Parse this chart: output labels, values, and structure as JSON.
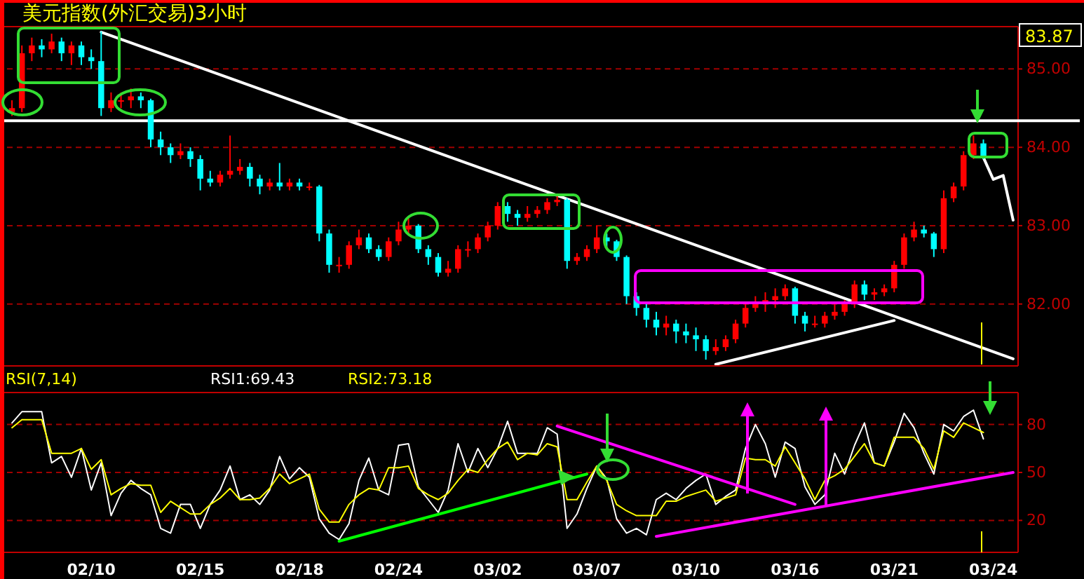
{
  "chart_data": [
    {
      "type": "candlestick",
      "title": "美元指数(外汇交易)3小时",
      "categories": [
        null,
        null,
        null,
        null,
        null,
        null,
        null,
        null,
        null,
        null,
        null,
        null,
        null,
        null,
        null,
        null,
        null,
        null,
        null,
        null,
        null,
        null,
        null,
        null,
        null,
        null,
        null,
        null,
        null,
        null,
        null,
        null,
        null,
        null,
        null,
        null,
        null,
        null,
        null,
        null,
        null,
        null,
        null,
        null,
        null,
        null,
        null,
        null,
        null,
        null,
        null,
        null,
        null,
        null,
        null,
        null,
        null,
        null,
        null,
        null,
        null,
        null,
        null,
        null,
        null,
        null,
        null,
        null,
        null,
        null,
        null,
        null,
        null,
        null,
        null,
        null,
        null,
        null,
        null,
        null,
        null,
        null,
        null,
        null,
        null,
        null,
        null,
        null,
        null,
        null,
        null,
        null,
        null,
        null,
        null,
        null,
        null,
        null,
        null,
        null,
        null,
        null
      ],
      "ohlc": [
        [
          84.45,
          84.6,
          84.4,
          84.5
        ],
        [
          84.5,
          85.3,
          84.45,
          85.2
        ],
        [
          85.2,
          85.4,
          85.1,
          85.3
        ],
        [
          85.3,
          85.38,
          85.15,
          85.25
        ],
        [
          85.25,
          85.45,
          85.2,
          85.35
        ],
        [
          85.35,
          85.4,
          85.1,
          85.2
        ],
        [
          85.2,
          85.35,
          85.05,
          85.3
        ],
        [
          85.3,
          85.35,
          85.05,
          85.15
        ],
        [
          85.15,
          85.25,
          85.0,
          85.1
        ],
        [
          85.1,
          85.48,
          84.4,
          84.5
        ],
        [
          84.5,
          84.7,
          84.45,
          84.6
        ],
        [
          84.6,
          84.7,
          84.5,
          84.6
        ],
        [
          84.6,
          84.75,
          84.5,
          84.65
        ],
        [
          84.65,
          84.7,
          84.5,
          84.6
        ],
        [
          84.6,
          84.62,
          84.0,
          84.1
        ],
        [
          84.1,
          84.2,
          83.9,
          84.0
        ],
        [
          84.0,
          84.05,
          83.8,
          83.9
        ],
        [
          83.9,
          84.05,
          83.85,
          83.95
        ],
        [
          83.95,
          84.0,
          83.75,
          83.85
        ],
        [
          83.85,
          83.9,
          83.45,
          83.6
        ],
        [
          83.6,
          83.7,
          83.5,
          83.55
        ],
        [
          83.55,
          83.7,
          83.5,
          83.65
        ],
        [
          83.65,
          84.15,
          83.6,
          83.7
        ],
        [
          83.7,
          83.85,
          83.65,
          83.75
        ],
        [
          83.75,
          83.8,
          83.5,
          83.6
        ],
        [
          83.6,
          83.65,
          83.4,
          83.5
        ],
        [
          83.5,
          83.6,
          83.45,
          83.55
        ],
        [
          83.55,
          83.8,
          83.45,
          83.5
        ],
        [
          83.5,
          83.6,
          83.45,
          83.55
        ],
        [
          83.55,
          83.6,
          83.45,
          83.5
        ],
        [
          83.5,
          83.55,
          83.45,
          83.5
        ],
        [
          83.5,
          83.52,
          82.8,
          82.9
        ],
        [
          82.9,
          82.95,
          82.4,
          82.5
        ],
        [
          82.5,
          82.6,
          82.4,
          82.5
        ],
        [
          82.5,
          82.8,
          82.45,
          82.75
        ],
        [
          82.75,
          82.95,
          82.7,
          82.85
        ],
        [
          82.85,
          82.9,
          82.65,
          82.7
        ],
        [
          82.7,
          82.75,
          82.55,
          82.6
        ],
        [
          82.6,
          82.85,
          82.55,
          82.8
        ],
        [
          82.8,
          83.05,
          82.75,
          82.95
        ],
        [
          82.95,
          83.1,
          82.9,
          83.0
        ],
        [
          83.0,
          83.02,
          82.65,
          82.7
        ],
        [
          82.7,
          82.75,
          82.5,
          82.6
        ],
        [
          82.6,
          82.65,
          82.35,
          82.4
        ],
        [
          82.4,
          82.55,
          82.35,
          82.45
        ],
        [
          82.45,
          82.75,
          82.4,
          82.7
        ],
        [
          82.7,
          82.8,
          82.6,
          82.7
        ],
        [
          82.7,
          82.9,
          82.65,
          82.85
        ],
        [
          82.85,
          83.05,
          82.8,
          83.0
        ],
        [
          83.0,
          83.3,
          82.95,
          83.25
        ],
        [
          83.25,
          83.3,
          83.05,
          83.15
        ],
        [
          83.15,
          83.2,
          83.0,
          83.1
        ],
        [
          83.1,
          83.25,
          83.05,
          83.15
        ],
        [
          83.15,
          83.25,
          83.1,
          83.2
        ],
        [
          83.2,
          83.35,
          83.15,
          83.3
        ],
        [
          83.3,
          83.38,
          83.25,
          83.33
        ],
        [
          83.33,
          83.35,
          82.45,
          82.55
        ],
        [
          82.55,
          82.65,
          82.5,
          82.6
        ],
        [
          82.6,
          82.75,
          82.55,
          82.7
        ],
        [
          82.7,
          83.0,
          82.65,
          82.85
        ],
        [
          82.85,
          82.9,
          82.7,
          82.8
        ],
        [
          82.8,
          82.82,
          82.55,
          82.6
        ],
        [
          82.6,
          82.62,
          82.0,
          82.1
        ],
        [
          82.1,
          82.15,
          81.85,
          81.95
        ],
        [
          81.95,
          82.0,
          81.7,
          81.8
        ],
        [
          81.8,
          81.9,
          81.6,
          81.7
        ],
        [
          81.7,
          81.85,
          81.6,
          81.75
        ],
        [
          81.75,
          81.8,
          81.5,
          81.65
        ],
        [
          81.65,
          81.75,
          81.5,
          81.6
        ],
        [
          81.6,
          81.7,
          81.4,
          81.55
        ],
        [
          81.55,
          81.6,
          81.29,
          81.4
        ],
        [
          81.4,
          81.55,
          81.35,
          81.45
        ],
        [
          81.45,
          81.6,
          81.4,
          81.55
        ],
        [
          81.55,
          81.8,
          81.5,
          81.75
        ],
        [
          81.75,
          82.0,
          81.7,
          81.95
        ],
        [
          81.95,
          82.1,
          81.9,
          82.0
        ],
        [
          82.0,
          82.15,
          81.9,
          82.05
        ],
        [
          82.05,
          82.2,
          81.95,
          82.1
        ],
        [
          82.1,
          82.25,
          82.05,
          82.2
        ],
        [
          82.2,
          82.22,
          81.75,
          81.85
        ],
        [
          81.85,
          81.9,
          81.65,
          81.75
        ],
        [
          81.75,
          81.85,
          81.7,
          81.75
        ],
        [
          81.75,
          81.9,
          81.7,
          81.85
        ],
        [
          81.85,
          82.0,
          81.8,
          81.9
        ],
        [
          81.9,
          82.05,
          81.85,
          82.0
        ],
        [
          82.0,
          82.3,
          81.95,
          82.25
        ],
        [
          82.25,
          82.3,
          82.05,
          82.12
        ],
        [
          82.12,
          82.2,
          82.05,
          82.15
        ],
        [
          82.15,
          82.25,
          82.1,
          82.2
        ],
        [
          82.2,
          82.55,
          82.15,
          82.5
        ],
        [
          82.5,
          82.9,
          82.45,
          82.85
        ],
        [
          82.85,
          83.05,
          82.8,
          82.95
        ],
        [
          82.95,
          83.0,
          82.85,
          82.9
        ],
        [
          82.9,
          82.92,
          82.6,
          82.7
        ],
        [
          82.7,
          83.45,
          82.65,
          83.35
        ],
        [
          83.35,
          83.55,
          83.3,
          83.5
        ],
        [
          83.5,
          83.95,
          83.45,
          83.9
        ],
        [
          83.9,
          84.15,
          83.85,
          84.05
        ],
        [
          84.05,
          84.1,
          83.85,
          83.87
        ],
        null,
        null,
        null
      ],
      "colors": [
        "#ff0000",
        "#ff0000",
        "#ff0000",
        "#00ffff",
        "#ff0000",
        "#00ffff",
        "#ff0000",
        "#00ffff",
        "#00ffff",
        "#00ffff",
        "#ff0000",
        "#ff0000",
        "#ff0000",
        "#00ffff",
        "#00ffff",
        "#00ffff",
        "#00ffff",
        "#ff0000",
        "#00ffff",
        "#00ffff",
        "#00ffff",
        "#ff0000",
        "#ff0000",
        "#ff0000",
        "#00ffff",
        "#00ffff",
        "#ff0000",
        "#00ffff",
        "#ff0000",
        "#00ffff",
        "#ff0000",
        "#00ffff",
        "#00ffff",
        "#ff0000",
        "#ff0000",
        "#ff0000",
        "#00ffff",
        "#00ffff",
        "#ff0000",
        "#ff0000",
        "#ff0000",
        "#00ffff",
        "#00ffff",
        "#00ffff",
        "#ff0000",
        "#ff0000",
        "#ff0000",
        "#ff0000",
        "#ff0000",
        "#ff0000",
        "#00ffff",
        "#00ffff",
        "#ff0000",
        "#ff0000",
        "#ff0000",
        "#ff0000",
        "#00ffff",
        "#ff0000",
        "#ff0000",
        "#ff0000",
        "#00ffff",
        "#00ffff",
        "#00ffff",
        "#00ffff",
        "#00ffff",
        "#00ffff",
        "#ff0000",
        "#00ffff",
        "#00ffff",
        "#00ffff",
        "#00ffff",
        "#ff0000",
        "#ff0000",
        "#ff0000",
        "#ff0000",
        "#ff0000",
        "#ff0000",
        "#ff0000",
        "#ff0000",
        "#00ffff",
        "#00ffff",
        "#ff0000",
        "#ff0000",
        "#ff0000",
        "#ff0000",
        "#ff0000",
        "#00ffff",
        "#ff0000",
        "#ff0000",
        "#ff0000",
        "#ff0000",
        "#ff0000",
        "#00ffff",
        "#00ffff",
        "#ff0000",
        "#ff0000",
        "#ff0000",
        "#ff0000",
        "#00ffff",
        null,
        null,
        null
      ],
      "series": [
        {
          "type": "line",
          "color": "#ffffff",
          "values": [
            null,
            null,
            null,
            null,
            null,
            null,
            null,
            null,
            null,
            85.47,
            null,
            null,
            null,
            null,
            null,
            null,
            null,
            null,
            null,
            null,
            null,
            null,
            null,
            null,
            null,
            null,
            null,
            null,
            null,
            null,
            null,
            null,
            null,
            null,
            null,
            null,
            null,
            null,
            null,
            null,
            null,
            null,
            null,
            null,
            null,
            null,
            null,
            null,
            null,
            null,
            null,
            null,
            null,
            null,
            null,
            null,
            null,
            null,
            null,
            null,
            null,
            null,
            null,
            null,
            null,
            null,
            null,
            null,
            null,
            null,
            null,
            null,
            null,
            null,
            null,
            null,
            null,
            null,
            null,
            null,
            null,
            null,
            null,
            null,
            null,
            null,
            null,
            null,
            null,
            null,
            null,
            null,
            null,
            null,
            null,
            null,
            null,
            null,
            null,
            null,
            null,
            81.3
          ]
        },
        {
          "type": "line",
          "color": "#ffffff",
          "values": [
            null,
            null,
            null,
            null,
            null,
            null,
            null,
            null,
            null,
            null,
            null,
            null,
            null,
            null,
            null,
            null,
            null,
            null,
            null,
            null,
            null,
            null,
            null,
            null,
            null,
            null,
            null,
            null,
            null,
            null,
            null,
            null,
            null,
            null,
            null,
            null,
            null,
            null,
            null,
            null,
            null,
            null,
            null,
            null,
            null,
            null,
            null,
            null,
            null,
            null,
            null,
            null,
            null,
            null,
            null,
            null,
            null,
            null,
            null,
            null,
            null,
            null,
            null,
            null,
            null,
            null,
            null,
            null,
            null,
            null,
            null,
            81.23,
            null,
            null,
            null,
            null,
            null,
            null,
            null,
            null,
            null,
            null,
            null,
            null,
            null,
            null,
            null,
            null,
            null,
            81.79,
            null,
            null,
            null,
            null,
            null,
            null,
            null,
            null,
            null,
            null,
            null,
            null
          ]
        },
        {
          "type": "line",
          "color": "#ffffff",
          "values": [
            null,
            null,
            null,
            null,
            null,
            null,
            null,
            null,
            null,
            null,
            null,
            null,
            null,
            null,
            null,
            null,
            null,
            null,
            null,
            null,
            null,
            null,
            null,
            null,
            null,
            null,
            null,
            null,
            null,
            null,
            null,
            null,
            null,
            null,
            null,
            null,
            null,
            null,
            null,
            null,
            null,
            null,
            null,
            null,
            null,
            null,
            null,
            null,
            null,
            null,
            null,
            null,
            null,
            null,
            null,
            null,
            null,
            null,
            null,
            null,
            null,
            null,
            null,
            null,
            null,
            null,
            null,
            null,
            null,
            null,
            null,
            null,
            null,
            null,
            null,
            null,
            null,
            null,
            null,
            null,
            null,
            null,
            null,
            null,
            null,
            null,
            null,
            null,
            null,
            null,
            null,
            null,
            null,
            null,
            null,
            null,
            null,
            null,
            83.87,
            83.59,
            83.64,
            83.07
          ]
        }
      ],
      "ref_lines": [
        {
          "axis": "y",
          "value": 84.34,
          "color": "#ffffff"
        }
      ],
      "ylim": [
        81.21,
        85.54
      ],
      "yticks": [
        {
          "value": 82,
          "label": "82.00"
        },
        {
          "value": 83,
          "label": "83.00"
        },
        {
          "value": 84,
          "label": "84.00"
        },
        {
          "value": 85,
          "label": "85.00"
        }
      ],
      "grid": "y",
      "tick_labels": "y",
      "annotations": [
        "83.87"
      ]
    },
    {
      "type": "line",
      "title": "RSI(7,14)",
      "legend": "top",
      "categories": [
        null,
        null,
        null,
        null,
        null,
        null,
        null,
        null,
        "02/10",
        null,
        null,
        null,
        null,
        null,
        null,
        null,
        null,
        null,
        null,
        "02/15",
        null,
        null,
        null,
        null,
        null,
        null,
        null,
        null,
        null,
        "02/18",
        null,
        null,
        null,
        null,
        null,
        null,
        null,
        null,
        null,
        "02/24",
        null,
        null,
        null,
        null,
        null,
        null,
        null,
        null,
        null,
        "03/02",
        null,
        null,
        null,
        null,
        null,
        null,
        null,
        null,
        null,
        "03/07",
        null,
        null,
        null,
        null,
        null,
        null,
        null,
        null,
        null,
        "03/10",
        null,
        null,
        null,
        null,
        null,
        null,
        null,
        null,
        null,
        "03/16",
        null,
        null,
        null,
        null,
        null,
        null,
        null,
        null,
        null,
        "03/21",
        null,
        null,
        null,
        null,
        null,
        null,
        null,
        null,
        null,
        "03/24",
        null,
        null
      ],
      "series": [
        {
          "name": "RSI1:69.43",
          "color": "#ffffff",
          "values": [
            81,
            88,
            88,
            88,
            56,
            60,
            47,
            65,
            39,
            56,
            23,
            37,
            45,
            40,
            36,
            15,
            12,
            30,
            30,
            15,
            30,
            39,
            54,
            33,
            36,
            30,
            39,
            60,
            46,
            53,
            47,
            21,
            12,
            8,
            18,
            45,
            59,
            39,
            36,
            67,
            68,
            41,
            33,
            25,
            39,
            68,
            50,
            65,
            53,
            65,
            82,
            62,
            62,
            62,
            78,
            74,
            15,
            24,
            40,
            54,
            46,
            21,
            12,
            15,
            11,
            33,
            37,
            33,
            40,
            45,
            49,
            30,
            35,
            39,
            65,
            80,
            68,
            47,
            69,
            65,
            41,
            30,
            36,
            62,
            49,
            67,
            81,
            56,
            54,
            69,
            87,
            78,
            62,
            49,
            80,
            76,
            85,
            89,
            71,
            null,
            null,
            null
          ]
        },
        {
          "name": "RSI2:73.18",
          "color": "#ffff00",
          "values": [
            78,
            83,
            83,
            83,
            62,
            62,
            62,
            65,
            52,
            58,
            36,
            40,
            43,
            42,
            42,
            25,
            32,
            28,
            24,
            24,
            30,
            34,
            40,
            33,
            33,
            34,
            40,
            49,
            43,
            46,
            49,
            27,
            19,
            19,
            30,
            36,
            40,
            39,
            53,
            53,
            54,
            40,
            36,
            33,
            37,
            45,
            52,
            50,
            58,
            65,
            69,
            58,
            62,
            61,
            68,
            66,
            33,
            33,
            44,
            54,
            45,
            30,
            26,
            23,
            23,
            23,
            32,
            32,
            35,
            37,
            39,
            32,
            34,
            36,
            59,
            58,
            58,
            54,
            66,
            56,
            46,
            33,
            45,
            48,
            52,
            60,
            68,
            56,
            54,
            72,
            72,
            72,
            65,
            52,
            76,
            72,
            81,
            78,
            75,
            null,
            null,
            null
          ]
        },
        {
          "type": "line",
          "color": "#00ff00",
          "values": [
            null,
            null,
            null,
            null,
            null,
            null,
            null,
            null,
            null,
            null,
            null,
            null,
            null,
            null,
            null,
            null,
            null,
            null,
            null,
            null,
            null,
            null,
            null,
            null,
            null,
            null,
            null,
            null,
            null,
            null,
            null,
            null,
            null,
            7,
            null,
            null,
            null,
            null,
            null,
            null,
            null,
            null,
            null,
            null,
            null,
            null,
            null,
            null,
            null,
            null,
            null,
            null,
            null,
            null,
            null,
            null,
            null,
            null,
            49,
            null,
            null,
            null,
            null,
            null,
            null,
            null,
            null,
            null,
            null,
            null,
            null,
            null,
            null,
            null,
            null,
            null,
            null,
            null,
            null,
            null,
            null,
            null,
            null,
            null,
            null,
            null,
            null,
            null,
            null,
            null,
            null,
            null,
            null,
            null,
            null,
            null,
            null,
            null,
            null,
            null,
            null,
            null
          ]
        },
        {
          "type": "line",
          "color": "#ff00ff",
          "values": [
            null,
            null,
            null,
            null,
            null,
            null,
            null,
            null,
            null,
            null,
            null,
            null,
            null,
            null,
            null,
            null,
            null,
            null,
            null,
            null,
            null,
            null,
            null,
            null,
            null,
            null,
            null,
            null,
            null,
            null,
            null,
            null,
            null,
            null,
            null,
            null,
            null,
            null,
            null,
            null,
            null,
            null,
            null,
            null,
            null,
            null,
            null,
            null,
            null,
            null,
            null,
            null,
            null,
            null,
            null,
            79,
            null,
            null,
            null,
            null,
            null,
            null,
            null,
            null,
            null,
            null,
            null,
            null,
            null,
            null,
            null,
            null,
            null,
            null,
            null,
            null,
            null,
            null,
            null,
            30,
            null,
            null,
            null,
            null,
            null,
            null,
            null,
            null,
            null,
            null,
            null,
            null,
            null,
            null,
            null,
            null,
            null,
            null,
            null,
            null,
            null,
            null
          ]
        },
        {
          "type": "line",
          "color": "#ff00ff",
          "values": [
            null,
            null,
            null,
            null,
            null,
            null,
            null,
            null,
            null,
            null,
            null,
            null,
            null,
            null,
            null,
            null,
            null,
            null,
            null,
            null,
            null,
            null,
            null,
            null,
            null,
            null,
            null,
            null,
            null,
            null,
            null,
            null,
            null,
            null,
            null,
            null,
            null,
            null,
            null,
            null,
            null,
            null,
            null,
            null,
            null,
            null,
            null,
            null,
            null,
            null,
            null,
            null,
            null,
            null,
            null,
            null,
            null,
            null,
            null,
            null,
            null,
            null,
            null,
            null,
            null,
            10,
            null,
            null,
            null,
            null,
            null,
            null,
            null,
            null,
            null,
            null,
            null,
            null,
            null,
            null,
            null,
            null,
            null,
            null,
            null,
            null,
            null,
            null,
            null,
            null,
            null,
            null,
            null,
            null,
            null,
            null,
            null,
            null,
            null,
            null,
            null,
            50
          ]
        }
      ],
      "ylim": [
        0,
        100
      ],
      "yticks": [
        20,
        50,
        80
      ],
      "grid": "y"
    }
  ]
}
